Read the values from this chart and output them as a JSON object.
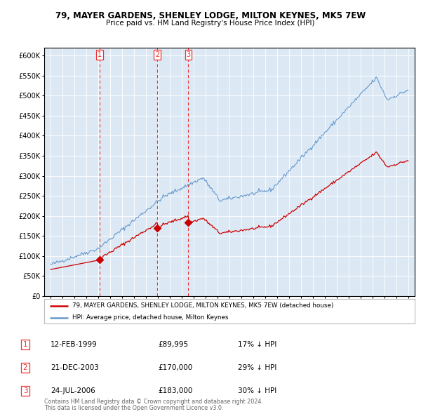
{
  "title": "79, MAYER GARDENS, SHENLEY LODGE, MILTON KEYNES, MK5 7EW",
  "subtitle": "Price paid vs. HM Land Registry's House Price Index (HPI)",
  "legend_line1": "79, MAYER GARDENS, SHENLEY LODGE, MILTON KEYNES, MK5 7EW (detached house)",
  "legend_line2": "HPI: Average price, detached house, Milton Keynes",
  "footer1": "Contains HM Land Registry data © Crown copyright and database right 2024.",
  "footer2": "This data is licensed under the Open Government Licence v3.0.",
  "table_rows": [
    {
      "num": "1",
      "date": "12-FEB-1999",
      "price": "£89,995",
      "pct": "17% ↓ HPI"
    },
    {
      "num": "2",
      "date": "21-DEC-2003",
      "price": "£170,000",
      "pct": "29% ↓ HPI"
    },
    {
      "num": "3",
      "date": "24-JUL-2006",
      "price": "£183,000",
      "pct": "30% ↓ HPI"
    }
  ],
  "sale_dates": [
    1999.12,
    2003.97,
    2006.56
  ],
  "sale_prices": [
    89995,
    170000,
    183000
  ],
  "vline_dates": [
    1999.12,
    2003.97,
    2006.56
  ],
  "bg_color": "#dce9f5",
  "red_line_color": "#cc0000",
  "blue_line_color": "#6699cc",
  "vline_color": "#ee3333",
  "ylim": [
    0,
    620000
  ],
  "yticks": [
    0,
    50000,
    100000,
    150000,
    200000,
    250000,
    300000,
    350000,
    400000,
    450000,
    500000,
    550000,
    600000
  ],
  "xlim": [
    1994.5,
    2025.5
  ],
  "year_start": 1995,
  "year_end": 2025
}
